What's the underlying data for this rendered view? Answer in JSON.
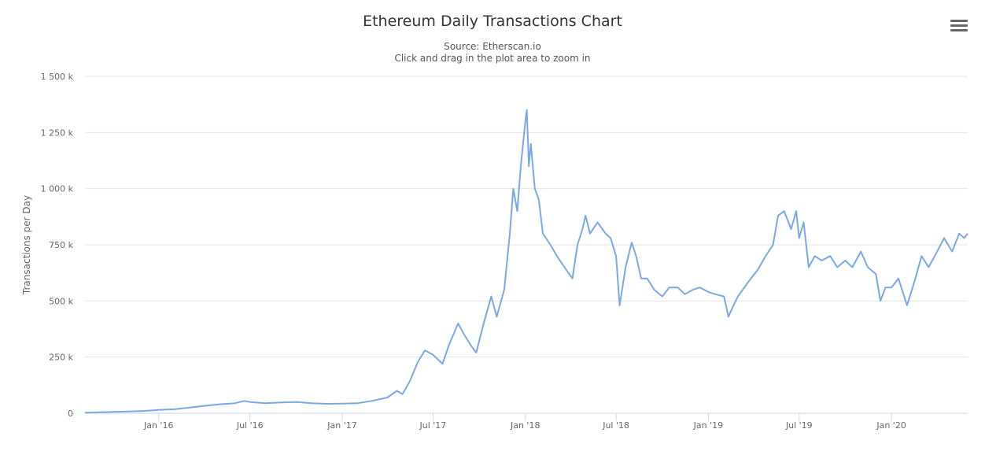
{
  "header": {
    "title": "Ethereum Daily Transactions Chart",
    "subtitle_source": "Source: Etherscan.io",
    "subtitle_hint": "Click and drag in the plot area to zoom in"
  },
  "colors": {
    "line": "#7ca9e6",
    "grid": "#e6e6e6",
    "axis": "#ccd6eb"
  },
  "icons": {
    "menu": "hamburger-menu-icon"
  },
  "chart_data": {
    "type": "line",
    "title": "Ethereum Daily Transactions Chart",
    "subtitle": "Source: Etherscan.io",
    "xlabel": "",
    "ylabel": "Transactions per Day",
    "ylim": [
      0,
      1500000
    ],
    "xlim": [
      "2015-08-07",
      "2020-06-01"
    ],
    "grid": true,
    "legend": "none",
    "y_ticks": [
      {
        "value": 0,
        "label": "0"
      },
      {
        "value": 250000,
        "label": "250 k"
      },
      {
        "value": 500000,
        "label": "500 k"
      },
      {
        "value": 750000,
        "label": "750 k"
      },
      {
        "value": 1000000,
        "label": "1 000 k"
      },
      {
        "value": 1250000,
        "label": "1 250 k"
      },
      {
        "value": 1500000,
        "label": "1 500 k"
      }
    ],
    "x_ticks": [
      {
        "value": "2016-01-01",
        "label": "Jan '16"
      },
      {
        "value": "2016-07-01",
        "label": "Jul '16"
      },
      {
        "value": "2017-01-01",
        "label": "Jan '17"
      },
      {
        "value": "2017-07-01",
        "label": "Jul '17"
      },
      {
        "value": "2018-01-01",
        "label": "Jan '18"
      },
      {
        "value": "2018-07-01",
        "label": "Jul '18"
      },
      {
        "value": "2019-01-01",
        "label": "Jan '19"
      },
      {
        "value": "2019-07-01",
        "label": "Jul '19"
      },
      {
        "value": "2020-01-01",
        "label": "Jan '20"
      }
    ],
    "series": [
      {
        "values": [
          [
            "2015-08-07",
            2000
          ],
          [
            "2015-09-01",
            4000
          ],
          [
            "2015-10-01",
            6000
          ],
          [
            "2015-11-01",
            8000
          ],
          [
            "2015-12-01",
            10000
          ],
          [
            "2016-01-01",
            15000
          ],
          [
            "2016-02-01",
            18000
          ],
          [
            "2016-03-01",
            25000
          ],
          [
            "2016-04-01",
            33000
          ],
          [
            "2016-05-01",
            40000
          ],
          [
            "2016-06-01",
            45000
          ],
          [
            "2016-06-20",
            55000
          ],
          [
            "2016-07-01",
            50000
          ],
          [
            "2016-08-01",
            45000
          ],
          [
            "2016-09-01",
            48000
          ],
          [
            "2016-10-01",
            50000
          ],
          [
            "2016-11-01",
            45000
          ],
          [
            "2016-12-01",
            42000
          ],
          [
            "2017-01-01",
            43000
          ],
          [
            "2017-02-01",
            45000
          ],
          [
            "2017-03-01",
            55000
          ],
          [
            "2017-04-01",
            70000
          ],
          [
            "2017-04-20",
            100000
          ],
          [
            "2017-05-01",
            85000
          ],
          [
            "2017-05-15",
            140000
          ],
          [
            "2017-06-01",
            230000
          ],
          [
            "2017-06-15",
            280000
          ],
          [
            "2017-07-01",
            260000
          ],
          [
            "2017-07-20",
            220000
          ],
          [
            "2017-08-01",
            300000
          ],
          [
            "2017-08-20",
            400000
          ],
          [
            "2017-09-01",
            350000
          ],
          [
            "2017-09-15",
            300000
          ],
          [
            "2017-09-25",
            270000
          ],
          [
            "2017-10-10",
            400000
          ],
          [
            "2017-10-25",
            520000
          ],
          [
            "2017-11-05",
            430000
          ],
          [
            "2017-11-20",
            550000
          ],
          [
            "2017-12-01",
            800000
          ],
          [
            "2017-12-08",
            1000000
          ],
          [
            "2017-12-16",
            900000
          ],
          [
            "2017-12-23",
            1100000
          ],
          [
            "2018-01-01",
            1300000
          ],
          [
            "2018-01-04",
            1350000
          ],
          [
            "2018-01-08",
            1100000
          ],
          [
            "2018-01-12",
            1200000
          ],
          [
            "2018-01-20",
            1000000
          ],
          [
            "2018-01-28",
            950000
          ],
          [
            "2018-02-05",
            800000
          ],
          [
            "2018-02-20",
            750000
          ],
          [
            "2018-03-05",
            700000
          ],
          [
            "2018-03-20",
            650000
          ],
          [
            "2018-04-05",
            600000
          ],
          [
            "2018-04-15",
            750000
          ],
          [
            "2018-04-25",
            820000
          ],
          [
            "2018-05-01",
            880000
          ],
          [
            "2018-05-10",
            800000
          ],
          [
            "2018-05-25",
            850000
          ],
          [
            "2018-06-10",
            800000
          ],
          [
            "2018-06-20",
            780000
          ],
          [
            "2018-07-01",
            700000
          ],
          [
            "2018-07-08",
            480000
          ],
          [
            "2018-07-20",
            650000
          ],
          [
            "2018-08-01",
            760000
          ],
          [
            "2018-08-10",
            700000
          ],
          [
            "2018-08-20",
            600000
          ],
          [
            "2018-09-01",
            600000
          ],
          [
            "2018-09-15",
            550000
          ],
          [
            "2018-10-01",
            520000
          ],
          [
            "2018-10-15",
            560000
          ],
          [
            "2018-11-01",
            560000
          ],
          [
            "2018-11-15",
            530000
          ],
          [
            "2018-12-01",
            550000
          ],
          [
            "2018-12-15",
            560000
          ],
          [
            "2019-01-01",
            540000
          ],
          [
            "2019-01-15",
            530000
          ],
          [
            "2019-02-01",
            520000
          ],
          [
            "2019-02-10",
            430000
          ],
          [
            "2019-02-20",
            480000
          ],
          [
            "2019-03-01",
            520000
          ],
          [
            "2019-03-20",
            580000
          ],
          [
            "2019-04-10",
            640000
          ],
          [
            "2019-04-25",
            700000
          ],
          [
            "2019-05-10",
            750000
          ],
          [
            "2019-05-20",
            880000
          ],
          [
            "2019-06-01",
            900000
          ],
          [
            "2019-06-15",
            820000
          ],
          [
            "2019-06-25",
            900000
          ],
          [
            "2019-07-01",
            780000
          ],
          [
            "2019-07-10",
            850000
          ],
          [
            "2019-07-20",
            650000
          ],
          [
            "2019-08-01",
            700000
          ],
          [
            "2019-08-15",
            680000
          ],
          [
            "2019-09-01",
            700000
          ],
          [
            "2019-09-15",
            650000
          ],
          [
            "2019-10-01",
            680000
          ],
          [
            "2019-10-15",
            650000
          ],
          [
            "2019-11-01",
            720000
          ],
          [
            "2019-11-15",
            650000
          ],
          [
            "2019-12-01",
            620000
          ],
          [
            "2019-12-10",
            500000
          ],
          [
            "2019-12-20",
            560000
          ],
          [
            "2020-01-01",
            560000
          ],
          [
            "2020-01-15",
            600000
          ],
          [
            "2020-02-01",
            480000
          ],
          [
            "2020-02-15",
            580000
          ],
          [
            "2020-03-01",
            700000
          ],
          [
            "2020-03-15",
            650000
          ],
          [
            "2020-04-01",
            720000
          ],
          [
            "2020-04-15",
            780000
          ],
          [
            "2020-05-01",
            720000
          ],
          [
            "2020-05-15",
            800000
          ],
          [
            "2020-05-25",
            780000
          ],
          [
            "2020-06-01",
            800000
          ]
        ]
      }
    ]
  }
}
